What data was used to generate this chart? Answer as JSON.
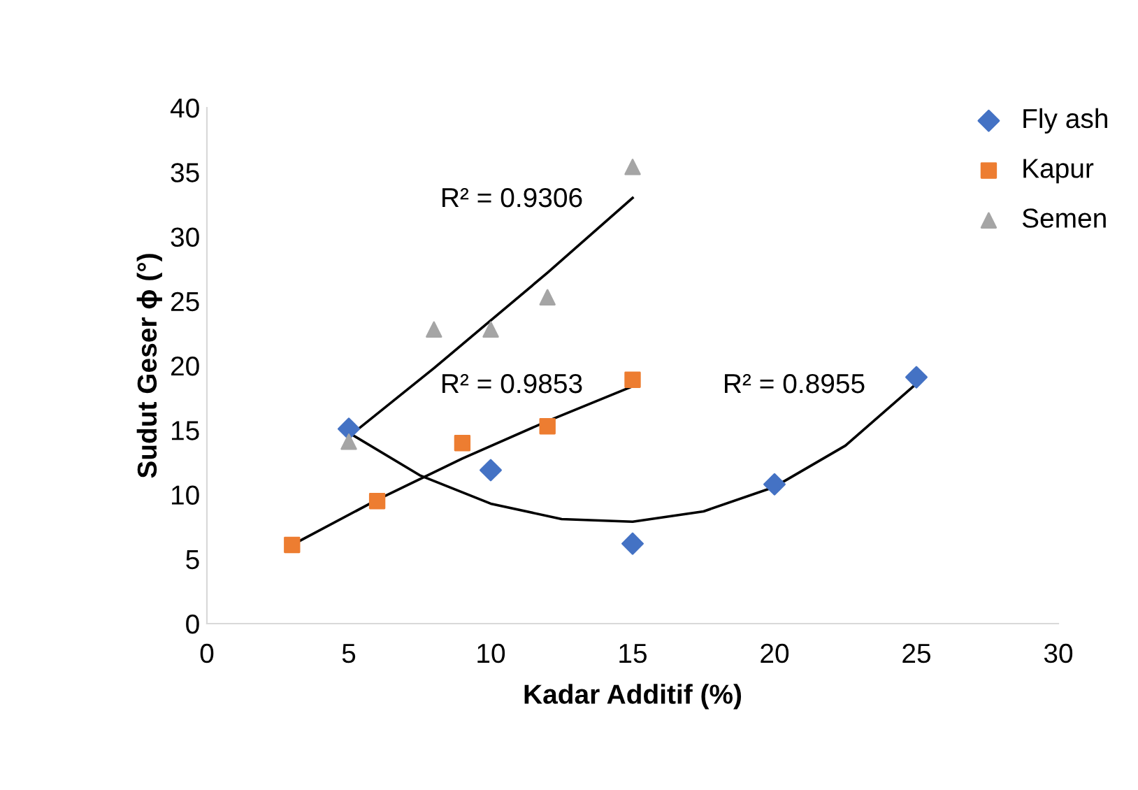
{
  "chart_data": {
    "type": "scatter",
    "xlabel": "Kadar Additif (%)",
    "ylabel": "Sudut Geser ϕ (°)",
    "xlim": [
      0,
      30
    ],
    "xticks": [
      0,
      5,
      10,
      15,
      20,
      25,
      30
    ],
    "ylim": [
      0,
      40
    ],
    "yticks": [
      0,
      5,
      10,
      15,
      20,
      25,
      30,
      35,
      40
    ],
    "grid": false,
    "legend": "top right",
    "series": [
      {
        "name": "Fly ash",
        "color": "#4472c4",
        "marker": "diamond",
        "x": [
          5,
          10,
          15,
          20,
          25
        ],
        "values": [
          15.1,
          11.9,
          6.2,
          10.8,
          19.1
        ]
      },
      {
        "name": "Kapur",
        "color": "#ed7d31",
        "marker": "square",
        "x": [
          3,
          6,
          9,
          12,
          15
        ],
        "values": [
          6.1,
          9.5,
          14.0,
          15.3,
          18.9
        ]
      },
      {
        "name": "Semen",
        "color": "#a5a5a5",
        "marker": "triangle",
        "x": [
          5,
          8,
          10,
          12,
          15
        ],
        "values": [
          14.1,
          22.8,
          22.8,
          25.3,
          35.4
        ]
      },
      {
        "type": "line",
        "color": "#000000",
        "x": [
          5,
          7.5,
          10,
          12.5,
          15,
          17.5,
          20,
          22.5,
          25
        ],
        "values": [
          14.8,
          11.5,
          9.3,
          8.1,
          7.9,
          8.7,
          10.6,
          13.8,
          18.6
        ]
      },
      {
        "type": "line",
        "color": "#000000",
        "x": [
          3,
          6,
          9,
          12,
          15
        ],
        "values": [
          6.1,
          9.6,
          12.8,
          15.7,
          18.4
        ]
      },
      {
        "type": "line",
        "color": "#000000",
        "x": [
          5,
          8,
          10,
          12,
          15
        ],
        "values": [
          14.5,
          19.8,
          23.5,
          27.2,
          33.0
        ]
      }
    ],
    "annotations": [
      "R² = 0.9306",
      "R² = 0.9853",
      "R² = 0.8955"
    ]
  }
}
